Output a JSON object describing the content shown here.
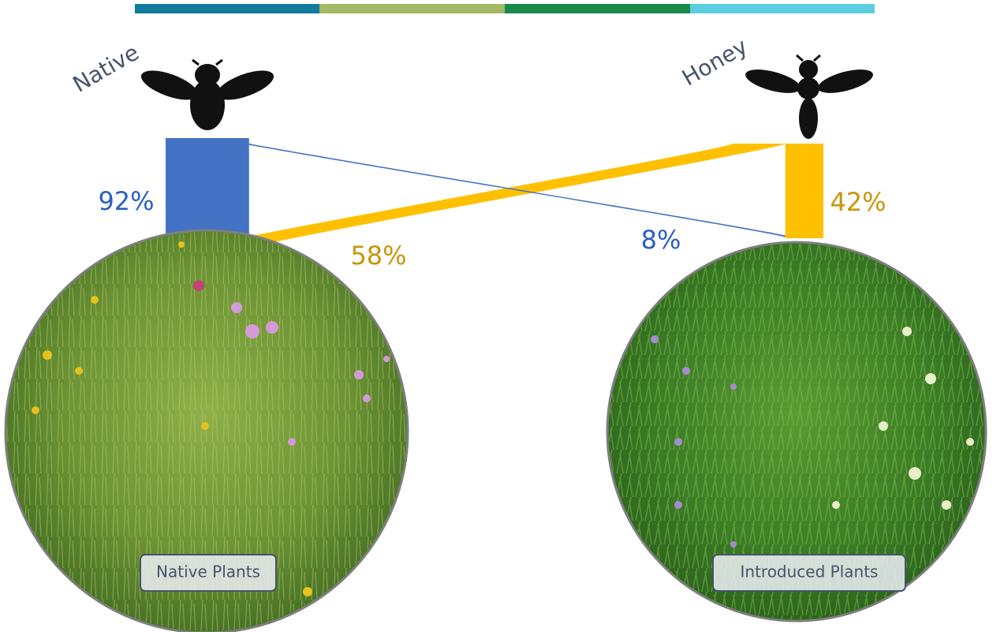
{
  "bees": [
    {
      "name": "Native",
      "flows": {
        "values": [
          92,
          8
        ],
        "value_labels": [
          "92%",
          "8%"
        ]
      }
    },
    {
      "name": "Honey",
      "flows": {
        "values": [
          58,
          42
        ],
        "value_labels": [
          "58%",
          "42%"
        ]
      }
    }
  ],
  "plants": [
    {
      "label": "Native Plants"
    },
    {
      "label": "Introduced Plants"
    }
  ],
  "colors": [
    "#4472c4",
    "#ffc000"
  ]
}
